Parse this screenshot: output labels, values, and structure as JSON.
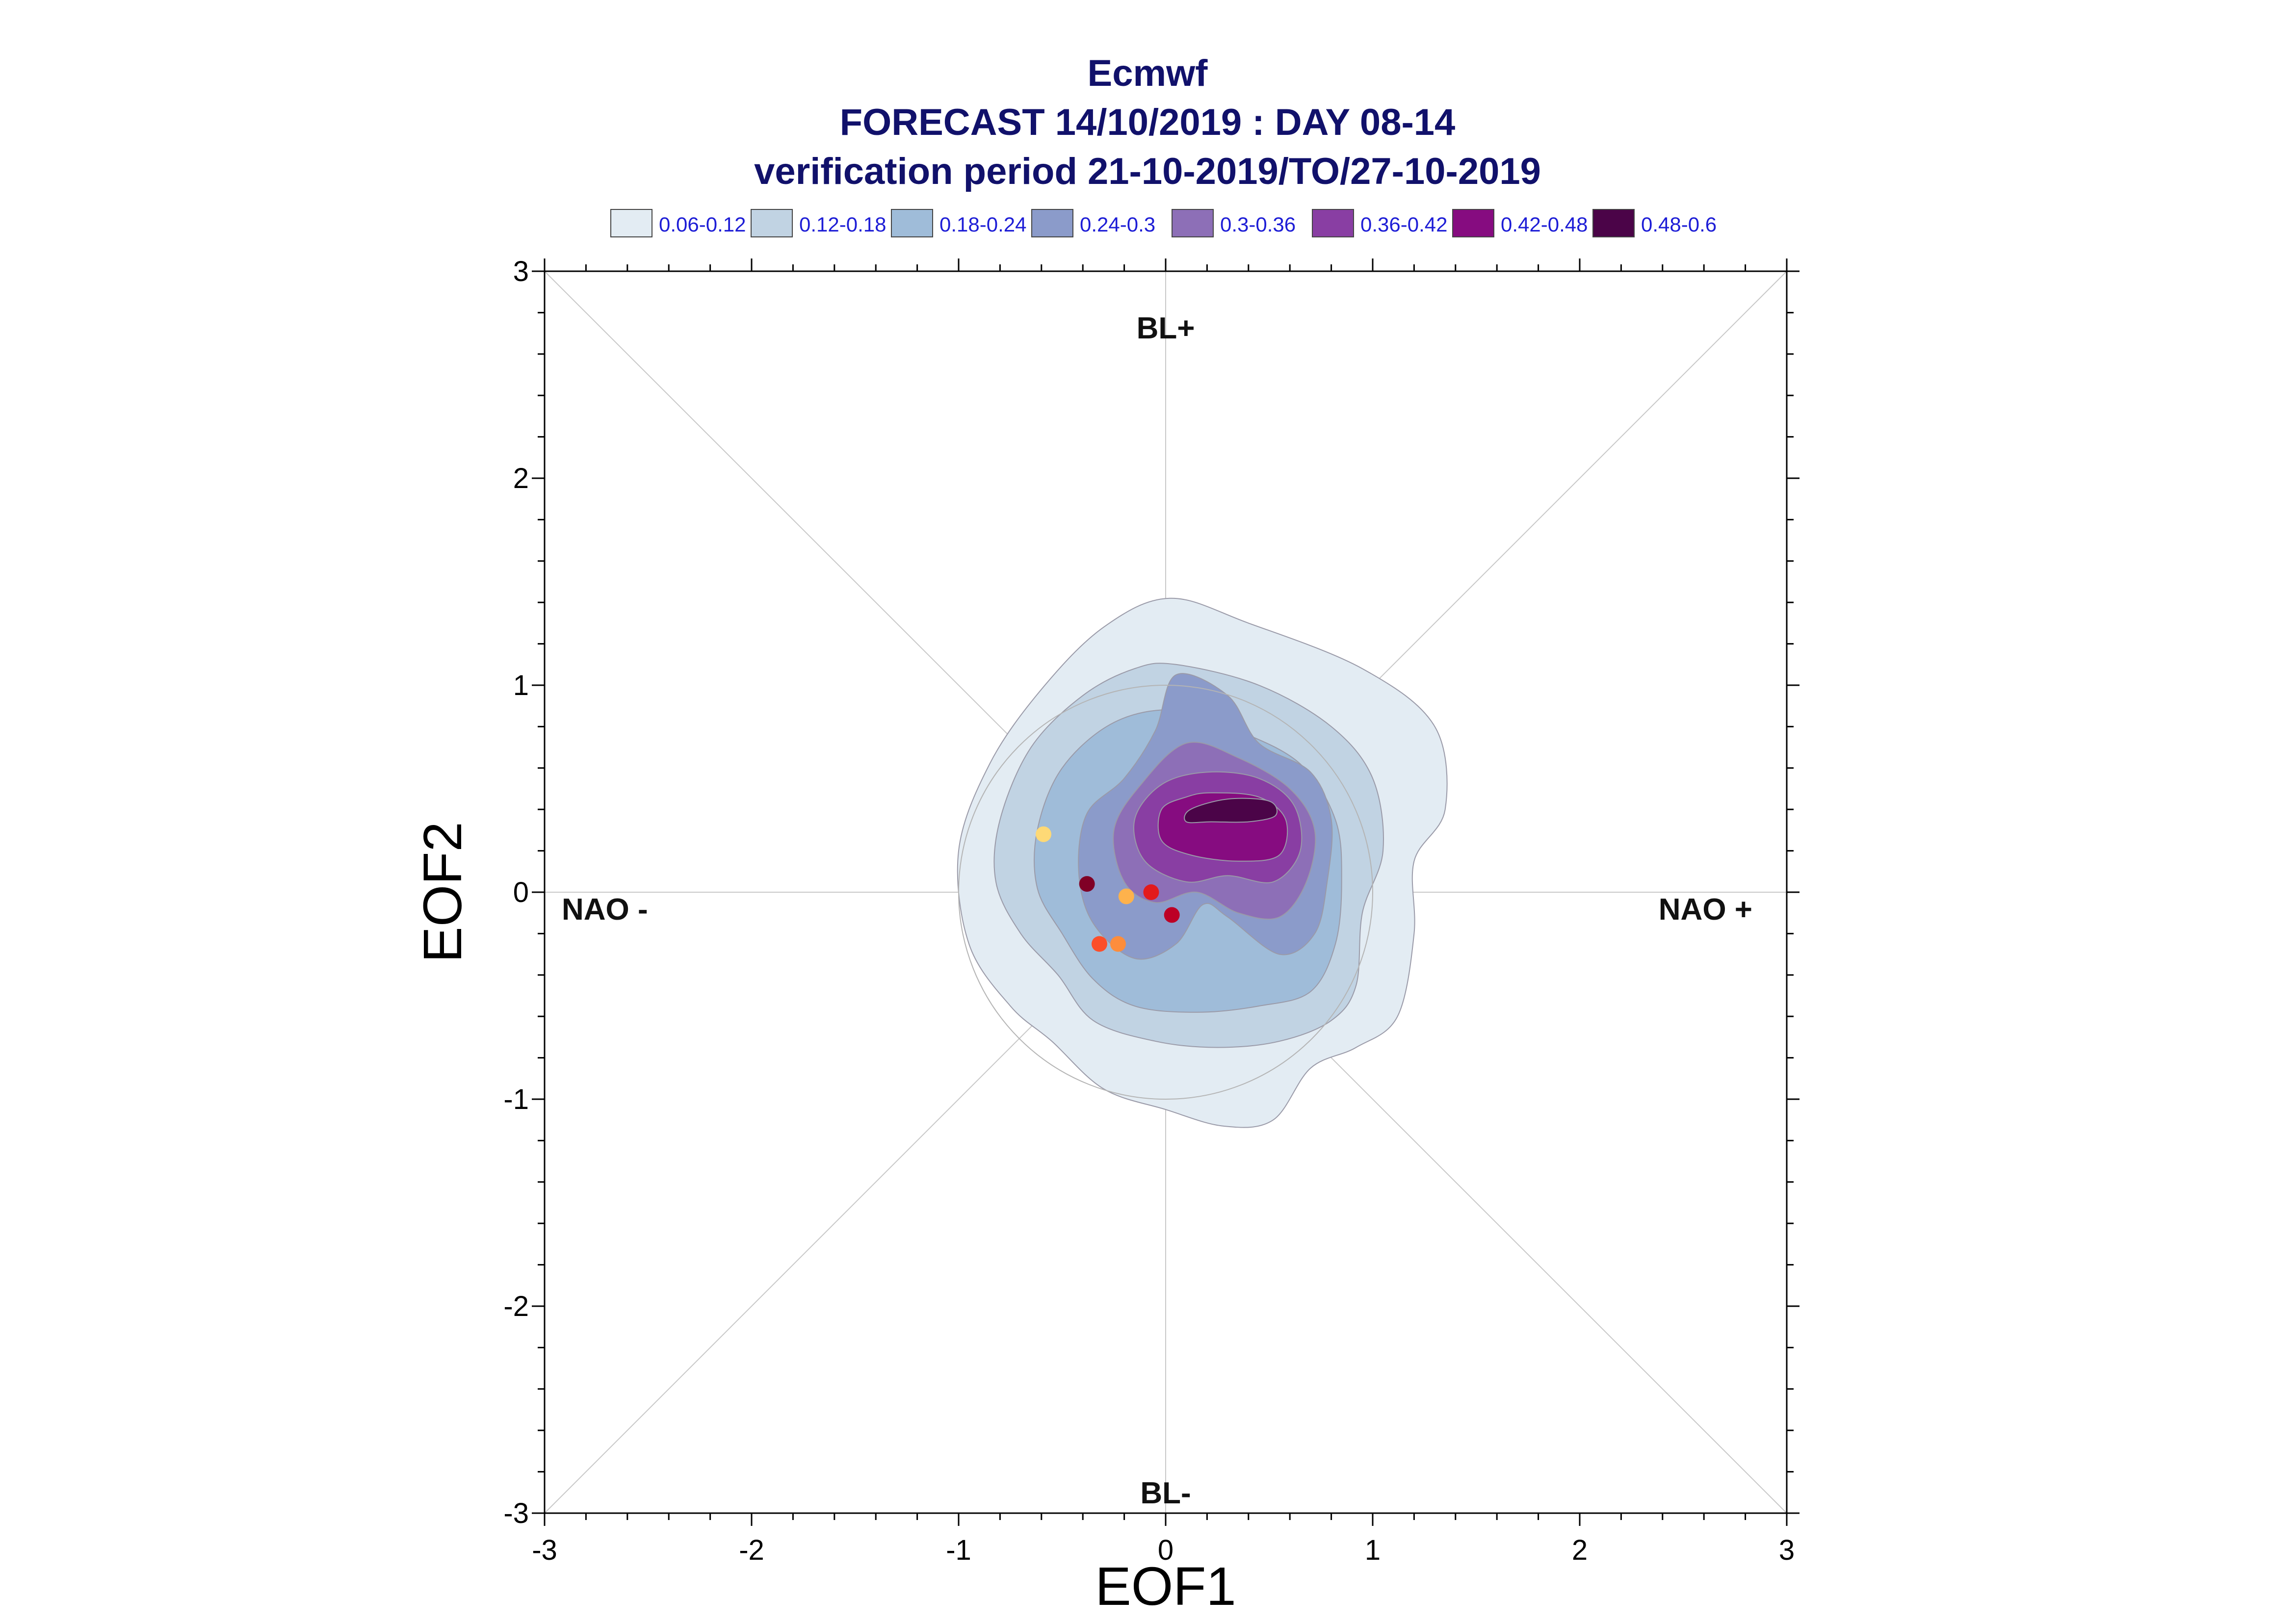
{
  "titles": {
    "line1": "Ecmwf",
    "line2": "FORECAST 14/10/2019 : DAY 08-14",
    "line3": "verification period 21-10-2019/TO/27-10-2019"
  },
  "legend": [
    {
      "label": "0.06-0.12",
      "color": "#e3ecf3"
    },
    {
      "label": "0.12-0.18",
      "color": "#c1d3e3"
    },
    {
      "label": "0.18-0.24",
      "color": "#9fbcd9"
    },
    {
      "label": "0.24-0.3",
      "color": "#8b9bca"
    },
    {
      "label": "0.3-0.36",
      "color": "#8d6fb7"
    },
    {
      "label": "0.36-0.42",
      "color": "#893ea3"
    },
    {
      "label": "0.42-0.48",
      "color": "#860c80"
    },
    {
      "label": "0.48-0.6",
      "color": "#4b0448"
    }
  ],
  "chart_data": {
    "type": "scatter",
    "xlabel": "EOF1",
    "ylabel": "EOF2",
    "xlim": [
      -3,
      3
    ],
    "ylim": [
      -3,
      3
    ],
    "xticks": [
      "-3",
      "-2",
      "-1",
      "0",
      "1",
      "2",
      "3"
    ],
    "yticks": [
      "-3",
      "-2",
      "-1",
      "0",
      "1",
      "2",
      "3"
    ],
    "regime_labels": {
      "top": "BL+",
      "bottom": "BL-",
      "left": "NAO -",
      "right": "NAO +"
    },
    "unit_circle_radius": 1,
    "density_contours": [
      {
        "level": "0.06-0.12",
        "color": "#e3ecf3",
        "polygon": [
          [
            0.02,
            1.42
          ],
          [
            0.4,
            1.3
          ],
          [
            0.95,
            1.08
          ],
          [
            1.3,
            0.8
          ],
          [
            1.35,
            0.4
          ],
          [
            1.2,
            0.15
          ],
          [
            1.2,
            -0.2
          ],
          [
            1.12,
            -0.6
          ],
          [
            0.92,
            -0.75
          ],
          [
            0.7,
            -0.85
          ],
          [
            0.52,
            -1.1
          ],
          [
            0.28,
            -1.13
          ],
          [
            0.0,
            -1.05
          ],
          [
            -0.3,
            -0.95
          ],
          [
            -0.55,
            -0.72
          ],
          [
            -0.75,
            -0.55
          ],
          [
            -0.95,
            -0.25
          ],
          [
            -1.0,
            0.2
          ],
          [
            -0.85,
            0.62
          ],
          [
            -0.6,
            0.98
          ],
          [
            -0.3,
            1.28
          ]
        ]
      },
      {
        "level": "0.12-0.18",
        "color": "#c1d3e3",
        "polygon": [
          [
            0.05,
            1.1
          ],
          [
            0.45,
            1.0
          ],
          [
            0.8,
            0.8
          ],
          [
            1.0,
            0.55
          ],
          [
            1.05,
            0.2
          ],
          [
            0.95,
            -0.1
          ],
          [
            0.92,
            -0.45
          ],
          [
            0.8,
            -0.62
          ],
          [
            0.55,
            -0.72
          ],
          [
            0.25,
            -0.75
          ],
          [
            -0.05,
            -0.72
          ],
          [
            -0.35,
            -0.62
          ],
          [
            -0.52,
            -0.4
          ],
          [
            -0.7,
            -0.2
          ],
          [
            -0.82,
            0.05
          ],
          [
            -0.8,
            0.35
          ],
          [
            -0.65,
            0.7
          ],
          [
            -0.4,
            0.95
          ],
          [
            -0.15,
            1.08
          ]
        ]
      },
      {
        "level": "0.18-0.24",
        "color": "#9fbcd9",
        "polygon": [
          [
            0.05,
            0.88
          ],
          [
            0.35,
            0.78
          ],
          [
            0.65,
            0.62
          ],
          [
            0.82,
            0.35
          ],
          [
            0.85,
            0.05
          ],
          [
            0.82,
            -0.25
          ],
          [
            0.7,
            -0.48
          ],
          [
            0.45,
            -0.55
          ],
          [
            0.15,
            -0.58
          ],
          [
            -0.15,
            -0.55
          ],
          [
            -0.35,
            -0.42
          ],
          [
            -0.5,
            -0.2
          ],
          [
            -0.62,
            0.02
          ],
          [
            -0.62,
            0.3
          ],
          [
            -0.5,
            0.6
          ],
          [
            -0.25,
            0.82
          ]
        ]
      },
      {
        "level": "0.24-0.3",
        "color": "#8b9bca",
        "polygon": [
          [
            0.05,
            1.05
          ],
          [
            0.3,
            0.95
          ],
          [
            0.45,
            0.72
          ],
          [
            0.7,
            0.58
          ],
          [
            0.8,
            0.35
          ],
          [
            0.78,
            0.05
          ],
          [
            0.72,
            -0.2
          ],
          [
            0.55,
            -0.3
          ],
          [
            0.3,
            -0.12
          ],
          [
            0.18,
            -0.06
          ],
          [
            0.05,
            -0.25
          ],
          [
            -0.15,
            -0.32
          ],
          [
            -0.35,
            -0.15
          ],
          [
            -0.42,
            0.1
          ],
          [
            -0.38,
            0.38
          ],
          [
            -0.2,
            0.55
          ],
          [
            -0.05,
            0.78
          ]
        ]
      },
      {
        "level": "0.3-0.36",
        "color": "#8d6fb7",
        "polygon": [
          [
            0.1,
            0.72
          ],
          [
            0.35,
            0.65
          ],
          [
            0.6,
            0.5
          ],
          [
            0.72,
            0.3
          ],
          [
            0.68,
            0.05
          ],
          [
            0.55,
            -0.12
          ],
          [
            0.35,
            -0.1
          ],
          [
            0.15,
            0.0
          ],
          [
            -0.05,
            -0.05
          ],
          [
            -0.2,
            0.05
          ],
          [
            -0.25,
            0.3
          ],
          [
            -0.12,
            0.52
          ]
        ]
      },
      {
        "level": "0.36-0.42",
        "color": "#893ea3",
        "polygon": [
          [
            0.2,
            0.58
          ],
          [
            0.45,
            0.55
          ],
          [
            0.62,
            0.42
          ],
          [
            0.65,
            0.2
          ],
          [
            0.52,
            0.05
          ],
          [
            0.3,
            0.08
          ],
          [
            0.1,
            0.05
          ],
          [
            -0.1,
            0.15
          ],
          [
            -0.15,
            0.35
          ],
          [
            -0.02,
            0.52
          ]
        ]
      },
      {
        "level": "0.42-0.48",
        "color": "#860c80",
        "polygon": [
          [
            0.22,
            0.48
          ],
          [
            0.45,
            0.46
          ],
          [
            0.58,
            0.35
          ],
          [
            0.55,
            0.18
          ],
          [
            0.35,
            0.15
          ],
          [
            0.12,
            0.18
          ],
          [
            -0.02,
            0.25
          ],
          [
            -0.02,
            0.4
          ],
          [
            0.1,
            0.46
          ]
        ]
      },
      {
        "level": "0.48-0.6",
        "color": "#4b0448",
        "polygon": [
          [
            0.3,
            0.45
          ],
          [
            0.5,
            0.44
          ],
          [
            0.53,
            0.37
          ],
          [
            0.4,
            0.34
          ],
          [
            0.22,
            0.34
          ],
          [
            0.1,
            0.34
          ],
          [
            0.12,
            0.4
          ]
        ]
      }
    ],
    "points": [
      {
        "x": -0.59,
        "y": 0.28,
        "color": "#fed976"
      },
      {
        "x": -0.38,
        "y": 0.04,
        "color": "#800026"
      },
      {
        "x": -0.19,
        "y": -0.02,
        "color": "#feb24c"
      },
      {
        "x": -0.07,
        "y": 0.0,
        "color": "#e31a1c"
      },
      {
        "x": 0.03,
        "y": -0.11,
        "color": "#bd0026"
      },
      {
        "x": -0.32,
        "y": -0.25,
        "color": "#fc4e2a"
      },
      {
        "x": -0.23,
        "y": -0.25,
        "color": "#fd8d3c"
      }
    ]
  }
}
